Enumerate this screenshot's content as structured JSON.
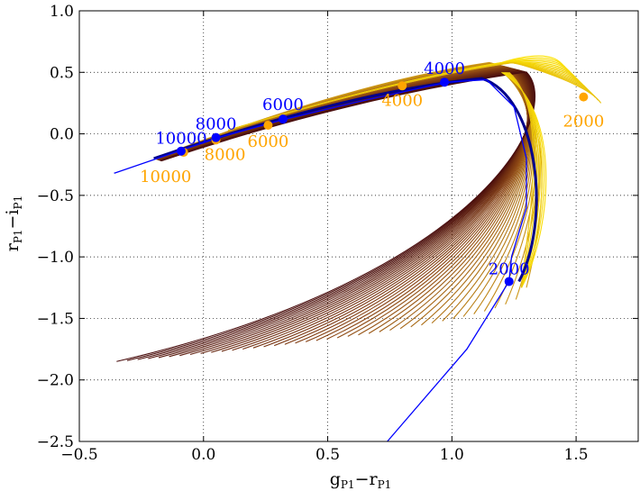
{
  "chart_data": {
    "type": "line",
    "title": "",
    "xlabel": "g_P1 − r_P1",
    "ylabel": "r_P1 − i_P1",
    "xlabel_main": "g",
    "xlabel_sub1": "P1",
    "xlabel_mid": "−r",
    "xlabel_sub2": "P1",
    "ylabel_main": "r",
    "ylabel_sub1": "P1",
    "ylabel_mid": "−i",
    "ylabel_sub2": "P1",
    "xlim": [
      -0.5,
      1.75
    ],
    "ylim": [
      -2.5,
      1.0
    ],
    "grid": true,
    "x_ticks": [
      -0.5,
      0.0,
      0.5,
      1.0,
      1.5
    ],
    "x_tick_labels": [
      "−0.5",
      "0.0",
      "0.5",
      "1.0",
      "1.5"
    ],
    "y_ticks": [
      1.0,
      0.5,
      0.0,
      -0.5,
      -1.0,
      -1.5,
      -2.0,
      -2.5
    ],
    "y_tick_labels": [
      "1.0",
      "0.5",
      "0.0",
      "−0.5",
      "−1.0",
      "−1.5",
      "−2.0",
      "−2.5"
    ],
    "colors": {
      "blue": "#0000ff",
      "orange": "#ffa500",
      "navy": "#00008b",
      "track_yellow": "#ffe600",
      "track_gold": "#d4a017",
      "track_brown": "#8b4513",
      "track_dark": "#4a0e0e"
    },
    "blackbody_line": {
      "name": "blue reference line",
      "x": [
        -0.36,
        0.06,
        0.33,
        0.6,
        0.98,
        1.14,
        1.25,
        1.3,
        1.3,
        1.24,
        1.23,
        1.06,
        0.74
      ],
      "y": [
        -0.32,
        -0.03,
        0.12,
        0.25,
        0.42,
        0.44,
        0.22,
        -0.2,
        -0.6,
        -1.0,
        -1.2,
        -1.75,
        -2.5
      ]
    },
    "blue_points": [
      {
        "label": "10000",
        "x": -0.09,
        "y": -0.14
      },
      {
        "label": "8000",
        "x": 0.05,
        "y": -0.03
      },
      {
        "label": "6000",
        "x": 0.32,
        "y": 0.12
      },
      {
        "label": "4000",
        "x": 0.97,
        "y": 0.42
      },
      {
        "label": "2000",
        "x": 1.23,
        "y": -1.2
      }
    ],
    "orange_points": [
      {
        "label": "10000",
        "x": -0.08,
        "y": -0.15
      },
      {
        "label": "8000",
        "x": 0.05,
        "y": -0.05
      },
      {
        "label": "6000",
        "x": 0.26,
        "y": 0.07
      },
      {
        "label": "4000",
        "x": 0.8,
        "y": 0.39
      },
      {
        "label": "2000",
        "x": 1.53,
        "y": 0.3
      }
    ],
    "track_family": {
      "count": 40,
      "description": "family of curves fanning from the upper-left ridge into a loop down to the lower-left",
      "start": {
        "x": -0.2,
        "y": -0.2
      },
      "ridge_control": {
        "x": 0.6,
        "y": 0.3
      },
      "peak": {
        "x_from": 1.15,
        "x_to": 1.3,
        "y_from": 0.45,
        "y_to": 0.58
      },
      "bottom_end": {
        "x_from": 1.3,
        "x_to": -0.35,
        "y_from": -1.25,
        "y_to": -1.85
      },
      "yellow_fan_tips": {
        "x_from": 1.45,
        "x_to": 1.6,
        "y_from": 0.55,
        "y_to": 0.25
      }
    }
  }
}
